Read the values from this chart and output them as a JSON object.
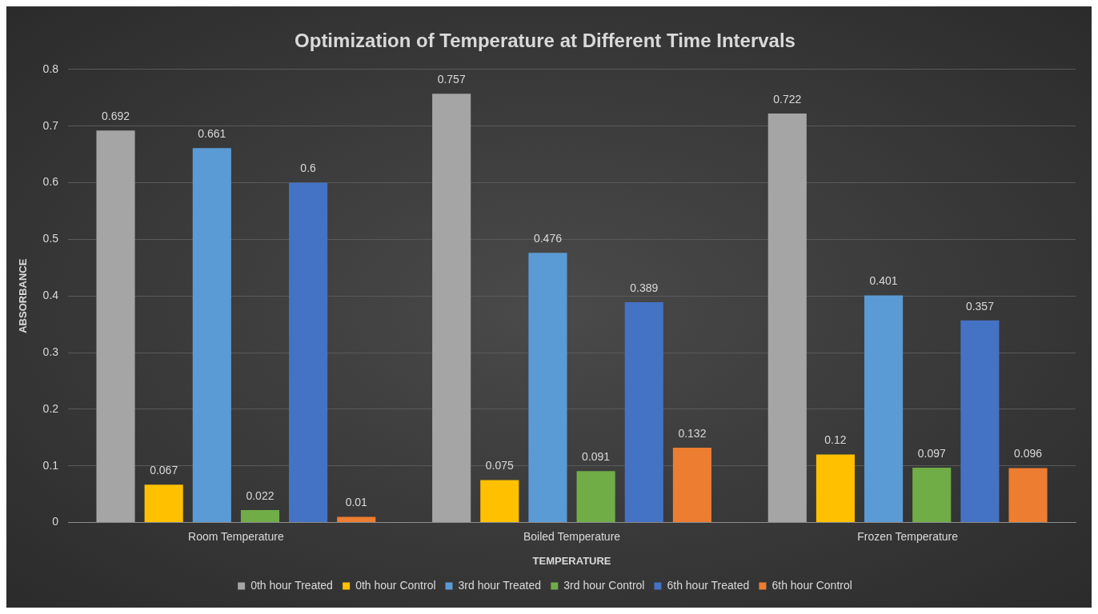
{
  "chart_data": {
    "type": "bar",
    "title": "Optimization of Temperature at Different Time Intervals",
    "xlabel": "TEMPERATURE",
    "ylabel": "ABSORBANCE",
    "categories": [
      "Room Temperature",
      "Boiled Temperature",
      "Frozen Temperature"
    ],
    "series": [
      {
        "name": "0th hour Treated",
        "color": "#a5a5a5",
        "values": [
          0.692,
          0.757,
          0.722
        ]
      },
      {
        "name": "0th hour Control",
        "color": "#ffc000",
        "values": [
          0.067,
          0.075,
          0.12
        ]
      },
      {
        "name": "3rd hour Treated",
        "color": "#5b9bd5",
        "values": [
          0.661,
          0.476,
          0.401
        ]
      },
      {
        "name": "3rd hour Control",
        "color": "#70ad47",
        "values": [
          0.022,
          0.091,
          0.097
        ]
      },
      {
        "name": "6th hour Treated",
        "color": "#4472c4",
        "values": [
          0.6,
          0.389,
          0.357
        ]
      },
      {
        "name": "6th hour Control",
        "color": "#ed7d31",
        "values": [
          0.01,
          0.132,
          0.096
        ]
      }
    ],
    "ylim": [
      0,
      0.8
    ],
    "yticks": [
      0,
      0.1,
      0.2,
      0.3,
      0.4,
      0.5,
      0.6,
      0.7,
      0.8
    ],
    "grid": "y",
    "legend": "bottom",
    "data_labels": true
  }
}
